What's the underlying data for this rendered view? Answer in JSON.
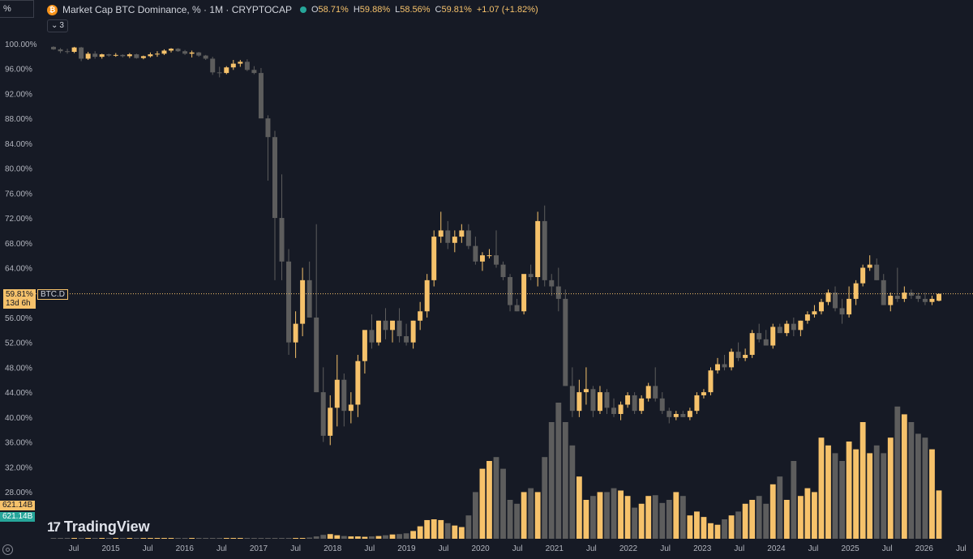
{
  "ticker_box": "%",
  "header": {
    "logo_glyph": "₿",
    "title": "Market Cap BTC Dominance, % · 1M · CRYPTOCAP",
    "open_label": "O",
    "open": "58.71%",
    "high_label": "H",
    "high": "59.88%",
    "low_label": "L",
    "low": "58.56%",
    "close_label": "C",
    "close": "59.81%",
    "change": "+1.07 (+1.82%)"
  },
  "collapse_count": "3",
  "price_label": {
    "value": "59.81%",
    "countdown": "13d 6h",
    "symbol": "BTC.D"
  },
  "volume_labels": [
    "621.14B",
    "621.14B"
  ],
  "brand": "TradingView",
  "colors": {
    "up": "#f6c26b",
    "down": "#5d5d5d",
    "background": "#161a25",
    "price_line": "#f6c26b"
  },
  "chart_data": {
    "type": "candlestick",
    "y_ticks": [
      "100.00%",
      "96.00%",
      "92.00%",
      "88.00%",
      "84.00%",
      "80.00%",
      "76.00%",
      "72.00%",
      "68.00%",
      "64.00%",
      "56.00%",
      "52.00%",
      "48.00%",
      "44.00%",
      "40.00%",
      "36.00%",
      "32.00%",
      "28.00%"
    ],
    "ylim": [
      25,
      103
    ],
    "x_ticks": [
      "Jul",
      "2015",
      "Jul",
      "2016",
      "Jul",
      "2017",
      "Jul",
      "2018",
      "Jul",
      "2019",
      "Jul",
      "2020",
      "Jul",
      "2021",
      "Jul",
      "2022",
      "Jul",
      "2023",
      "Jul",
      "2024",
      "Jul",
      "2025",
      "Jul",
      "2026",
      "Jul"
    ],
    "current_price": 59.81,
    "grid": false,
    "dominance": [
      [
        99.5,
        99.6,
        99.0,
        99.1
      ],
      [
        99.1,
        99.3,
        98.5,
        98.8
      ],
      [
        98.8,
        99.2,
        98.4,
        98.7
      ],
      [
        98.7,
        99.5,
        98.5,
        99.4
      ],
      [
        99.4,
        99.5,
        97.2,
        97.6
      ],
      [
        97.6,
        98.7,
        97.4,
        98.4
      ],
      [
        98.4,
        98.8,
        97.6,
        97.9
      ],
      [
        97.9,
        98.4,
        97.6,
        98.3
      ],
      [
        98.3,
        98.4,
        97.9,
        98.1
      ],
      [
        98.1,
        98.5,
        97.9,
        98.2
      ],
      [
        98.2,
        98.3,
        97.8,
        98.0
      ],
      [
        98.0,
        98.5,
        97.7,
        98.3
      ],
      [
        98.3,
        98.4,
        97.6,
        97.7
      ],
      [
        97.7,
        98.1,
        97.5,
        98.0
      ],
      [
        98.0,
        98.6,
        97.8,
        98.3
      ],
      [
        98.3,
        98.8,
        97.9,
        98.4
      ],
      [
        98.4,
        99.1,
        98.2,
        98.9
      ],
      [
        98.9,
        99.3,
        98.6,
        99.2
      ],
      [
        99.2,
        99.3,
        98.7,
        98.8
      ],
      [
        98.8,
        99.0,
        98.2,
        98.4
      ],
      [
        98.4,
        98.9,
        97.8,
        98.6
      ],
      [
        98.6,
        98.7,
        97.9,
        98.1
      ],
      [
        98.1,
        98.2,
        97.4,
        97.6
      ],
      [
        97.6,
        97.9,
        95.0,
        95.4
      ],
      [
        95.4,
        96.3,
        94.6,
        95.3
      ],
      [
        95.3,
        96.4,
        95.1,
        96.2
      ],
      [
        96.2,
        97.4,
        95.8,
        96.8
      ],
      [
        96.8,
        97.4,
        96.3,
        97.1
      ],
      [
        97.1,
        97.5,
        95.6,
        95.8
      ],
      [
        95.8,
        96.4,
        95.1,
        95.3
      ],
      [
        95.3,
        96.1,
        94.5,
        88.0
      ],
      [
        88.0,
        88.5,
        78.0,
        85.0
      ],
      [
        85.0,
        86.0,
        62.0,
        72.0
      ],
      [
        72.0,
        79.0,
        62.0,
        65.0
      ],
      [
        65.0,
        67.0,
        50.0,
        52.0
      ],
      [
        52.0,
        57.0,
        49.5,
        55.0
      ],
      [
        55.0,
        64.0,
        53.0,
        62.0
      ],
      [
        62.0,
        65.0,
        56.0,
        56.0
      ],
      [
        56.0,
        71.0,
        44.0,
        44.0
      ],
      [
        44.0,
        48.0,
        36.0,
        37.0
      ],
      [
        37.0,
        43.5,
        35.5,
        41.5
      ],
      [
        41.5,
        50.0,
        38.5,
        46.0
      ],
      [
        46.0,
        47.0,
        38.5,
        41.0
      ],
      [
        41.0,
        44.0,
        39.0,
        42.0
      ],
      [
        42.0,
        50.0,
        40.0,
        49.0
      ],
      [
        49.0,
        53.0,
        47.0,
        54.0
      ],
      [
        54.0,
        56.5,
        51.0,
        52.0
      ],
      [
        52.0,
        55.5,
        51.5,
        55.5
      ],
      [
        55.5,
        57.5,
        52.5,
        54.0
      ],
      [
        54.0,
        55.0,
        52.0,
        55.5
      ],
      [
        55.5,
        57.5,
        52.0,
        53.0
      ],
      [
        53.0,
        55.0,
        51.5,
        52.0
      ],
      [
        52.0,
        55.5,
        51.0,
        55.5
      ],
      [
        55.5,
        58.5,
        54.0,
        57.0
      ],
      [
        57.0,
        63.0,
        56.0,
        62.0
      ],
      [
        62.0,
        70.0,
        61.0,
        69.0
      ],
      [
        69.0,
        73.0,
        68.0,
        70.0
      ],
      [
        70.0,
        71.5,
        67.0,
        68.0
      ],
      [
        68.0,
        70.0,
        66.5,
        69.0
      ],
      [
        69.0,
        71.0,
        68.0,
        70.0
      ],
      [
        70.0,
        71.0,
        67.0,
        67.5
      ],
      [
        67.5,
        69.0,
        64.5,
        65.0
      ],
      [
        65.0,
        66.5,
        63.5,
        66.0
      ],
      [
        66.0,
        67.0,
        65.5,
        66.0
      ],
      [
        66.0,
        70.0,
        64.0,
        64.5
      ],
      [
        64.5,
        65.0,
        62.0,
        62.5
      ],
      [
        62.5,
        63.0,
        57.0,
        58.0
      ],
      [
        58.0,
        59.0,
        57.0,
        57.0
      ],
      [
        57.0,
        61.0,
        56.5,
        63.0
      ],
      [
        63.0,
        64.5,
        62.0,
        62.5
      ],
      [
        62.5,
        73.0,
        61.0,
        71.5
      ],
      [
        71.5,
        74.0,
        61.0,
        62.0
      ],
      [
        62.0,
        63.0,
        59.5,
        61.0
      ],
      [
        61.0,
        64.0,
        57.0,
        59.0
      ],
      [
        59.0,
        60.5,
        45.0,
        45.0
      ],
      [
        45.0,
        48.0,
        40.0,
        41.0
      ],
      [
        41.0,
        46.0,
        40.0,
        44.0
      ],
      [
        44.0,
        48.0,
        42.0,
        44.5
      ],
      [
        44.5,
        45.0,
        40.0,
        41.0
      ],
      [
        41.0,
        45.0,
        40.5,
        44.0
      ],
      [
        44.0,
        44.5,
        40.5,
        41.5
      ],
      [
        41.5,
        43.0,
        40.0,
        40.5
      ],
      [
        40.5,
        42.5,
        39.5,
        42.0
      ],
      [
        42.0,
        44.0,
        41.5,
        43.5
      ],
      [
        43.5,
        44.0,
        40.5,
        41.0
      ],
      [
        41.0,
        43.5,
        40.5,
        43.0
      ],
      [
        43.0,
        45.5,
        42.5,
        45.0
      ],
      [
        45.0,
        48.0,
        42.5,
        43.0
      ],
      [
        43.0,
        44.0,
        40.5,
        41.0
      ],
      [
        41.0,
        41.5,
        39.0,
        40.0
      ],
      [
        40.0,
        41.0,
        39.5,
        40.5
      ],
      [
        40.5,
        41.0,
        40.0,
        40.0
      ],
      [
        40.0,
        41.5,
        39.5,
        41.0
      ],
      [
        41.0,
        44.0,
        40.5,
        43.5
      ],
      [
        43.5,
        44.5,
        43.0,
        44.0
      ],
      [
        44.0,
        48.0,
        43.5,
        47.5
      ],
      [
        47.5,
        49.5,
        47.0,
        48.5
      ],
      [
        48.5,
        50.0,
        47.5,
        48.0
      ],
      [
        48.0,
        51.0,
        47.5,
        50.5
      ],
      [
        50.5,
        52.0,
        49.0,
        49.5
      ],
      [
        49.5,
        51.0,
        49.0,
        50.0
      ],
      [
        50.0,
        54.0,
        49.5,
        53.5
      ],
      [
        53.5,
        55.0,
        52.0,
        52.5
      ],
      [
        52.5,
        54.0,
        51.5,
        51.5
      ],
      [
        51.5,
        55.0,
        51.0,
        54.5
      ],
      [
        54.5,
        55.0,
        53.5,
        53.5
      ],
      [
        53.5,
        55.5,
        53.0,
        55.0
      ],
      [
        55.0,
        56.0,
        53.0,
        54.0
      ],
      [
        54.0,
        55.5,
        53.0,
        55.5
      ],
      [
        55.5,
        57.0,
        55.0,
        56.5
      ],
      [
        56.5,
        58.0,
        56.0,
        57.0
      ],
      [
        57.0,
        59.0,
        56.5,
        58.5
      ],
      [
        58.5,
        60.5,
        58.0,
        60.0
      ],
      [
        60.0,
        61.0,
        57.0,
        57.5
      ],
      [
        57.5,
        59.0,
        55.0,
        56.5
      ],
      [
        56.5,
        61.0,
        56.0,
        59.0
      ],
      [
        59.0,
        62.0,
        58.0,
        61.5
      ],
      [
        61.5,
        64.5,
        61.0,
        64.0
      ],
      [
        64.0,
        66.0,
        63.5,
        64.5
      ],
      [
        64.5,
        65.5,
        62.0,
        62.0
      ],
      [
        62.0,
        63.0,
        58.0,
        58.0
      ],
      [
        58.0,
        60.0,
        57.0,
        59.5
      ],
      [
        59.5,
        64.0,
        58.5,
        59.0
      ],
      [
        59.0,
        61.0,
        58.5,
        60.0
      ],
      [
        60.0,
        60.5,
        59.0,
        59.5
      ],
      [
        59.5,
        60.0,
        58.5,
        59.0
      ],
      [
        59.0,
        60.0,
        58.0,
        58.5
      ],
      [
        58.5,
        59.5,
        58.0,
        59.0
      ],
      [
        58.7,
        59.9,
        58.6,
        59.8
      ]
    ],
    "volume_billions": [
      0.5,
      0.5,
      0.5,
      0.5,
      0.5,
      0.5,
      0.5,
      0.5,
      0.5,
      0.5,
      0.5,
      0.5,
      0.5,
      0.5,
      0.5,
      0.5,
      0.5,
      0.5,
      0.5,
      0.5,
      0.5,
      0.5,
      0.5,
      0.5,
      1,
      1,
      1,
      1,
      1,
      1.5,
      2,
      2.5,
      3,
      4,
      6,
      8,
      10,
      15,
      30,
      50,
      60,
      45,
      35,
      30,
      30,
      25,
      30,
      35,
      45,
      55,
      60,
      70,
      100,
      160,
      240,
      250,
      240,
      200,
      170,
      150,
      300,
      600,
      900,
      1000,
      1050,
      900,
      500,
      450,
      600,
      650,
      600,
      1050,
      1500,
      1750,
      1500,
      1200,
      800,
      500,
      550,
      600,
      600,
      650,
      620,
      550,
      400,
      450,
      550,
      560,
      460,
      500,
      600,
      550,
      300,
      350,
      280,
      200,
      180,
      250,
      300,
      350,
      450,
      500,
      550,
      450,
      700,
      800,
      500,
      1000,
      550,
      650,
      600,
      1300,
      1200,
      1100,
      1000,
      1250,
      1150,
      1500,
      1100,
      1200,
      1100,
      1300,
      1700,
      1600,
      1500,
      1350,
      1300,
      1150,
      621
    ]
  }
}
